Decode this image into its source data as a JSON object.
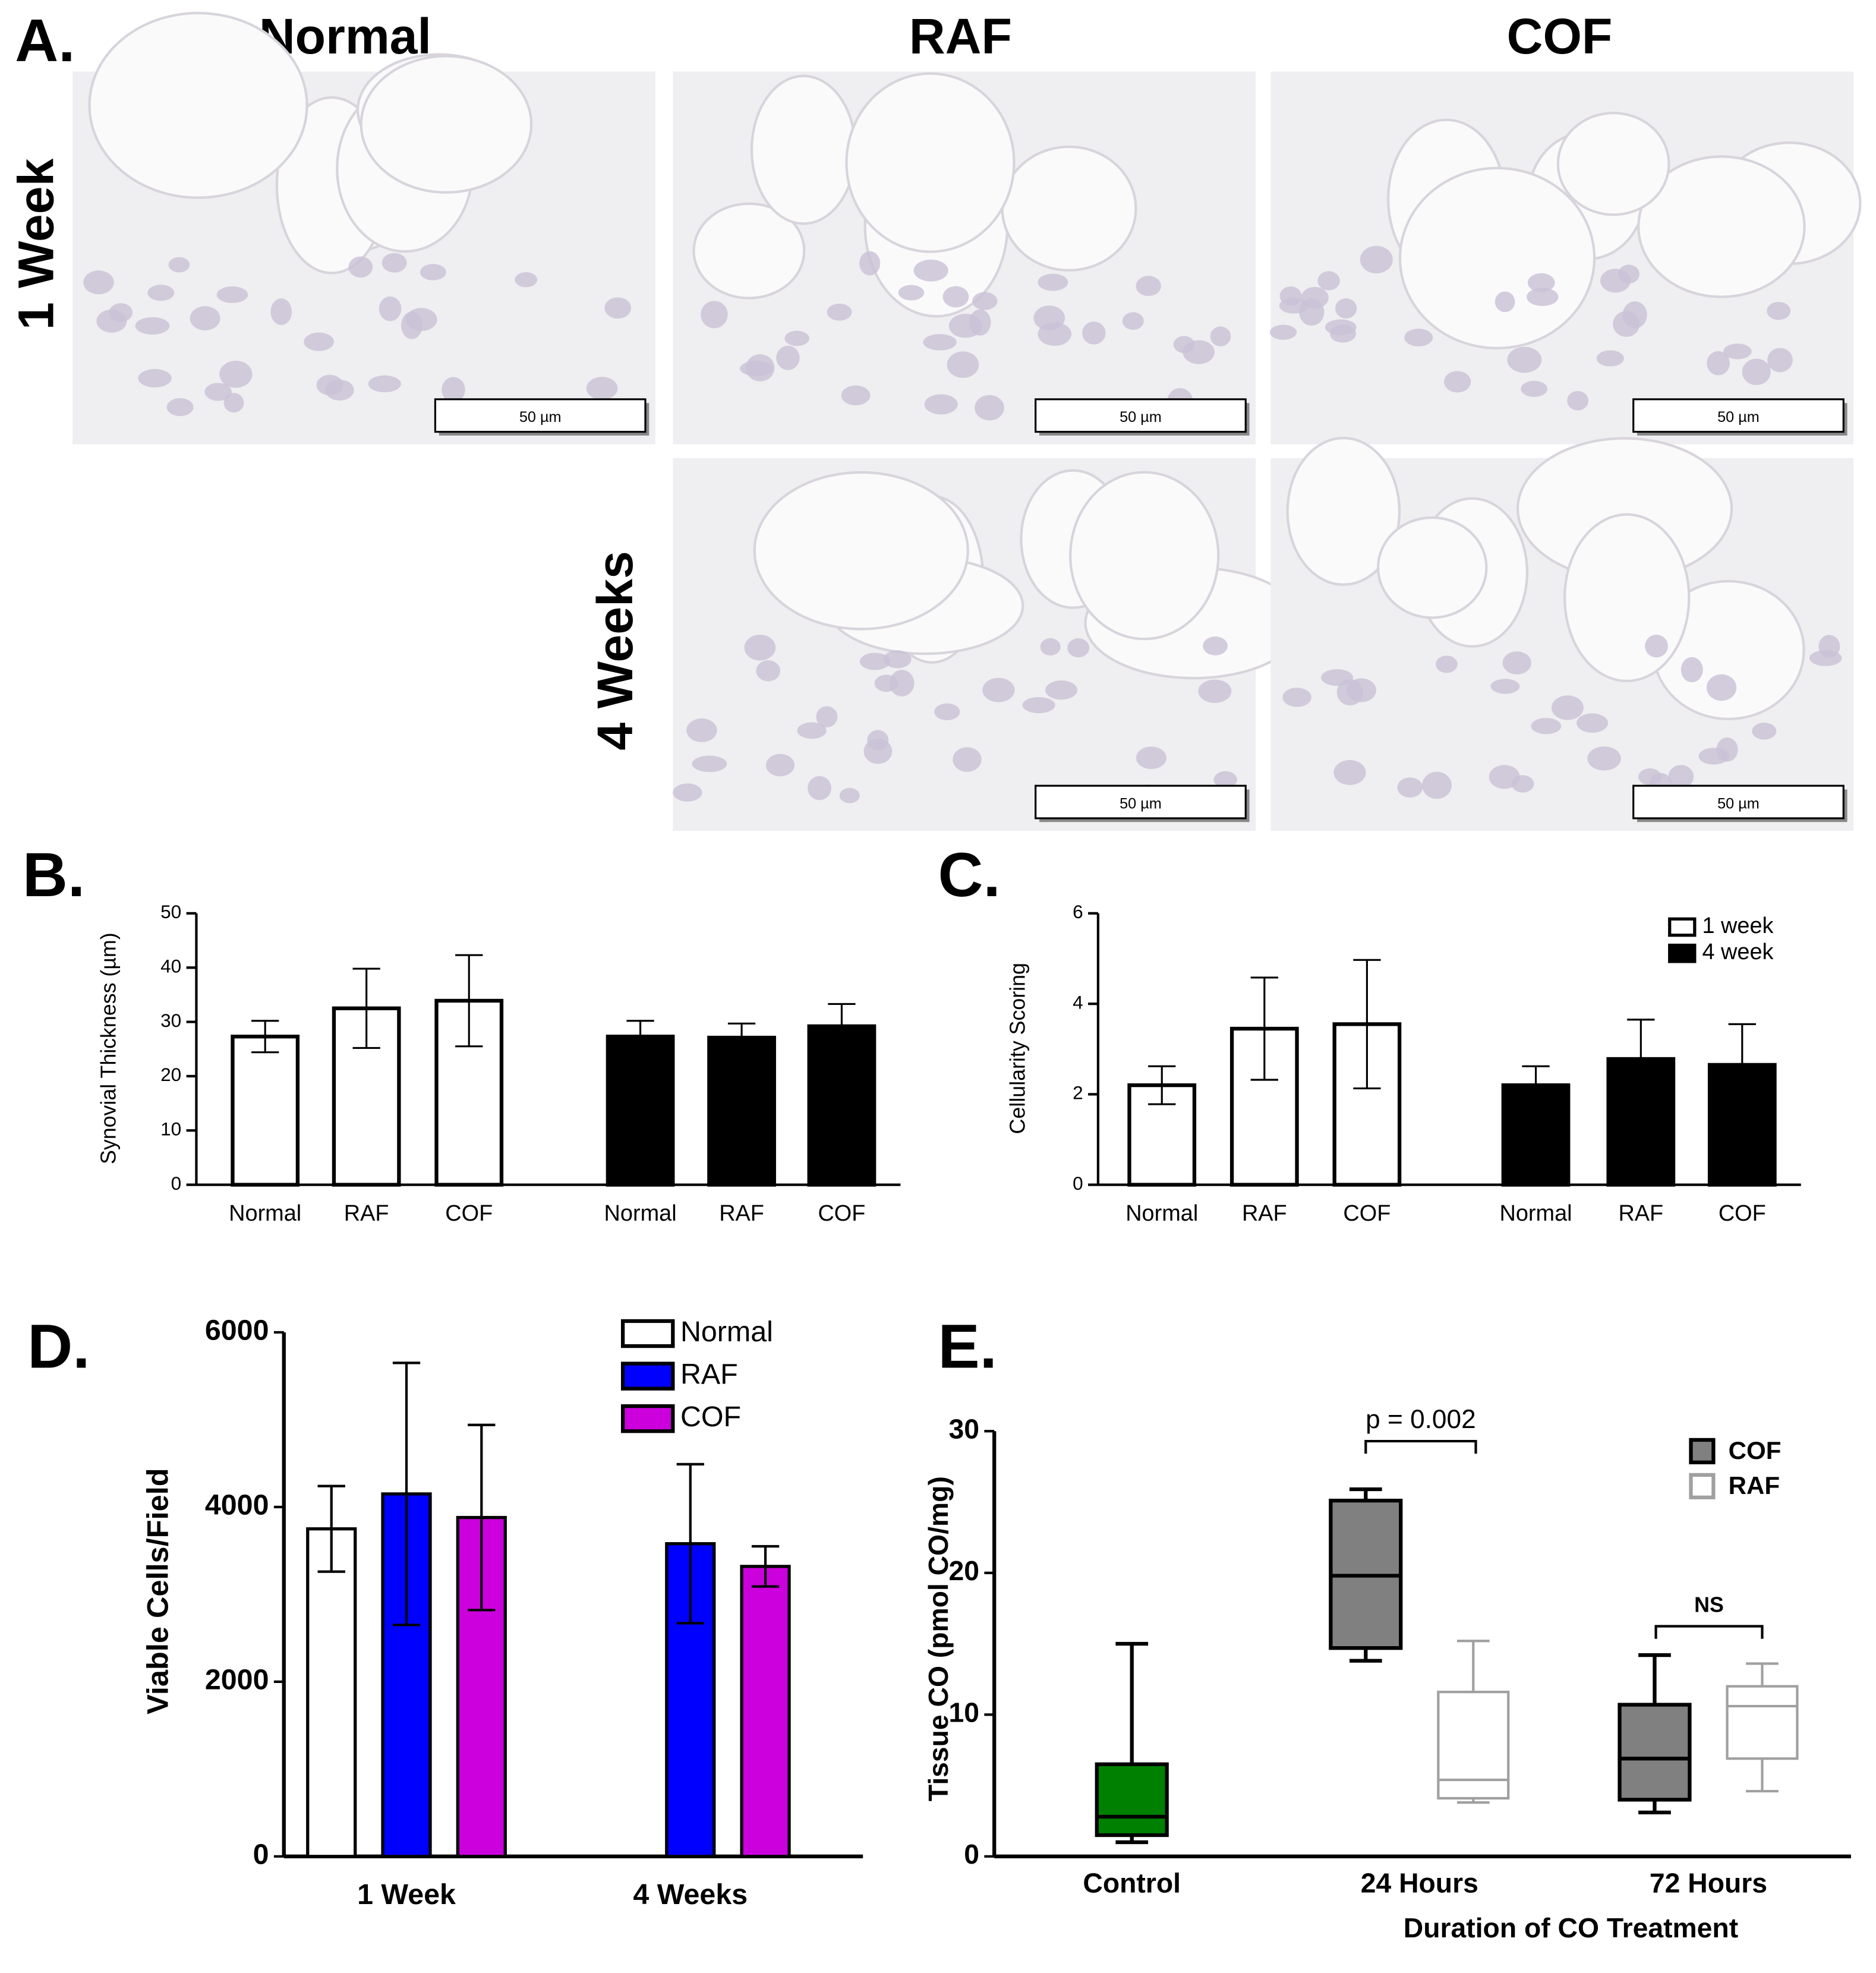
{
  "panel_a": {
    "label": "A.",
    "columns": [
      "Normal",
      "RAF",
      "COF"
    ],
    "rows": [
      "1 Week",
      "4 Weeks"
    ],
    "scale_bar": "50 µm"
  },
  "chart_data": [
    {
      "panel": "B.",
      "type": "bar",
      "ylabel": "Synovial Thickness  (µm)",
      "categories": [
        "Normal",
        "RAF",
        "COF",
        "Normal",
        "RAF",
        "COF"
      ],
      "series": [
        {
          "color": "#ffffff",
          "values": [
            27.3,
            32.5,
            33.9,
            null,
            null,
            null
          ],
          "errors": [
            2.9,
            7.3,
            8.4,
            null,
            null,
            null
          ]
        },
        {
          "color": "#000000",
          "values": [
            null,
            null,
            null,
            27.3,
            27.1,
            29.2
          ],
          "errors": [
            null,
            null,
            null,
            2.9,
            2.6,
            4.1
          ]
        }
      ],
      "ylim": [
        0,
        50
      ],
      "yticks": [
        0,
        10,
        20,
        30,
        40,
        50
      ]
    },
    {
      "panel": "C.",
      "type": "bar",
      "ylabel": "Cellularity Scoring",
      "categories": [
        "Normal",
        "RAF",
        "COF",
        "Normal",
        "RAF",
        "COF"
      ],
      "series": [
        {
          "name": "1 week",
          "color": "#ffffff",
          "values": [
            2.2,
            3.45,
            3.55,
            null,
            null,
            null
          ],
          "errors": [
            0.42,
            1.13,
            1.42,
            null,
            null,
            null
          ]
        },
        {
          "name": "4 week",
          "color": "#000000",
          "values": [
            null,
            null,
            null,
            2.2,
            2.78,
            2.65
          ],
          "errors": [
            null,
            null,
            null,
            0.42,
            0.87,
            0.9
          ]
        }
      ],
      "ylim": [
        0,
        6
      ],
      "yticks": [
        0,
        2,
        4,
        6
      ]
    },
    {
      "panel": "D.",
      "type": "bar",
      "ylabel": "Viable Cells/Field",
      "categories": [
        "1 Week",
        "4 Weeks"
      ],
      "series": [
        {
          "name": "Normal",
          "color": "#ffffff",
          "values": [
            3750,
            null
          ],
          "errors": [
            490,
            null
          ]
        },
        {
          "name": "RAF",
          "color": "#0000ff",
          "values": [
            4150,
            3580
          ],
          "errors": [
            1500,
            910
          ]
        },
        {
          "name": "COF",
          "color": "#cc00dd",
          "values": [
            3880,
            3320
          ],
          "errors": [
            1060,
            230
          ]
        }
      ],
      "ylim": [
        0,
        6000
      ],
      "yticks": [
        0,
        2000,
        4000,
        6000
      ]
    },
    {
      "panel": "E.",
      "type": "box",
      "ylabel": "Tissue CO (pmol CO/mg)",
      "xlabel": "Duration of CO Treatment",
      "categories": [
        "Control",
        "24 Hours",
        "72 Hours"
      ],
      "series": [
        {
          "color": "#008000",
          "stroke": "#000000",
          "min": [
            1,
            null,
            null
          ],
          "q1": [
            1.5,
            null,
            null
          ],
          "median": [
            2.8,
            null,
            null
          ],
          "q3": [
            6.5,
            null,
            null
          ],
          "max": [
            15,
            null,
            null
          ]
        },
        {
          "name": "COF",
          "color": "#808080",
          "stroke": "#000000",
          "min": [
            null,
            13.8,
            3.1
          ],
          "q1": [
            null,
            14.7,
            4
          ],
          "median": [
            null,
            19.8,
            6.9
          ],
          "q3": [
            null,
            25.1,
            10.7
          ],
          "max": [
            null,
            25.9,
            14.2
          ]
        },
        {
          "name": "RAF",
          "color": "#ffffff",
          "stroke": "#a0a0a0",
          "min": [
            null,
            3.8,
            4.6
          ],
          "q1": [
            null,
            4.1,
            6.9
          ],
          "median": [
            null,
            5.4,
            10.6
          ],
          "q3": [
            null,
            11.6,
            12
          ],
          "max": [
            null,
            15.2,
            13.6
          ]
        }
      ],
      "annotations": [
        "p = 0.002",
        "NS"
      ],
      "ylim": [
        0,
        30
      ],
      "yticks": [
        0,
        10,
        20,
        30
      ]
    }
  ]
}
